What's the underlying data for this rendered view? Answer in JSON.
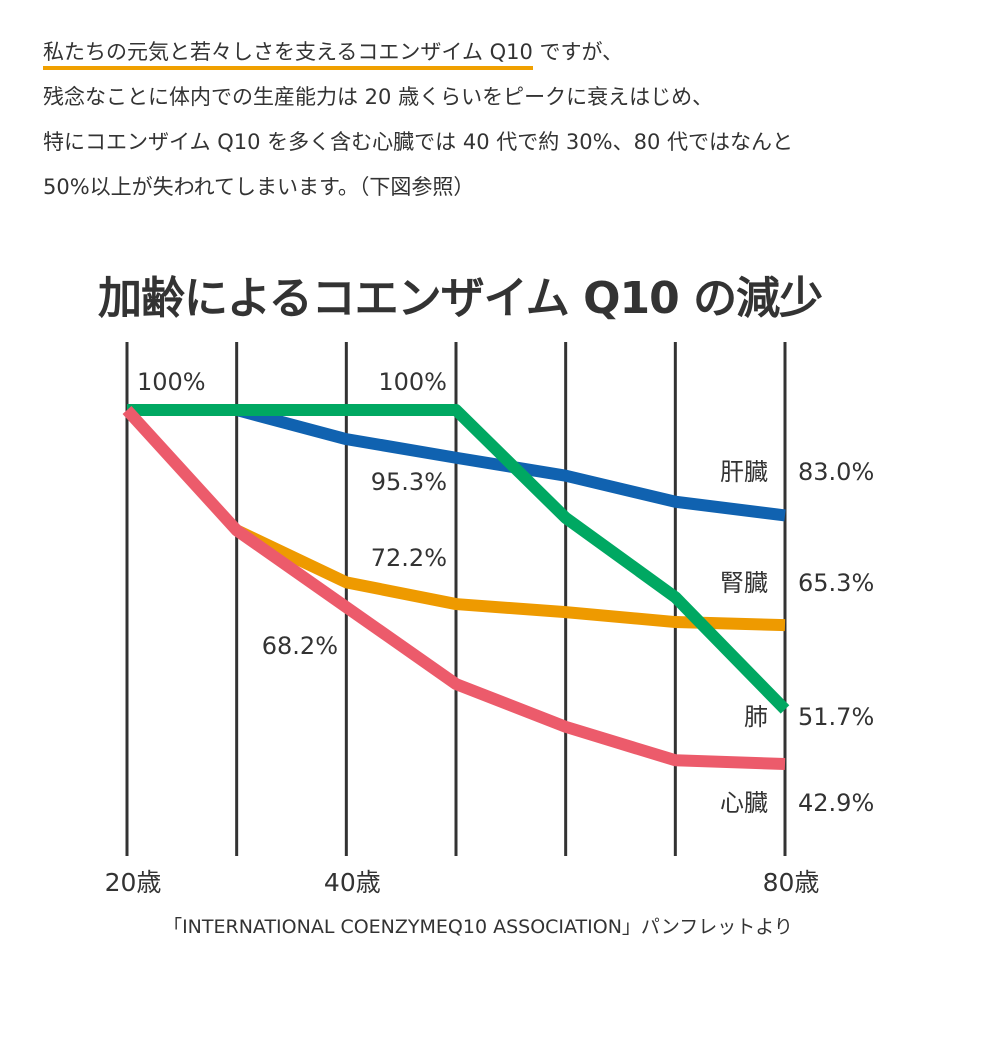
{
  "intro": {
    "line1_highlight": "私たちの元気と若々しさを支えるコエンザイム Q10",
    "line1_rest": " ですが、",
    "line2": "残念なことに体内での生産能力は 20 歳くらいをピークに衰えはじめ、",
    "line3": "特にコエンザイム Q10 を多く含む心臓では 40 代で約 30%、80 代ではなんと",
    "line4": "50%以上が失われてしまいます。（下図参照）",
    "highlight_color": "#f0a000"
  },
  "chart_data": {
    "type": "line",
    "title": "加齢によるコエンザイム Q10 の減少",
    "x": [
      20,
      30,
      40,
      50,
      60,
      70,
      80
    ],
    "x_unit": "歳",
    "x_tick_labels": [
      {
        "x": 20,
        "label": "20歳"
      },
      {
        "x": 40,
        "label": "40歳"
      },
      {
        "x": 80,
        "label": "80歳"
      }
    ],
    "xlim": [
      20,
      80
    ],
    "ylim": [
      40,
      100
    ],
    "y_unit": "%",
    "grid": "vertical lines at every 10 years",
    "series": [
      {
        "name": "肝臓",
        "color": "#1062b0",
        "values": [
          100,
          100,
          95.3,
          92.3,
          89.4,
          85.2,
          83.0
        ],
        "end_label": "83.0%"
      },
      {
        "name": "肺",
        "color": "#00a862",
        "values": [
          100,
          100,
          100,
          100,
          82.6,
          69.8,
          51.7
        ],
        "end_label": "51.7%"
      },
      {
        "name": "腎臓",
        "color": "#ee9a00",
        "values": [
          null,
          80.6,
          72.2,
          68.7,
          67.4,
          65.8,
          65.3
        ],
        "end_label": "65.3%"
      },
      {
        "name": "心臓",
        "color": "#ec5b6b",
        "values": [
          100,
          80.6,
          68.2,
          55.8,
          48.9,
          43.5,
          42.9
        ],
        "end_label": "42.9%"
      }
    ],
    "annotations": [
      {
        "x": 20,
        "text": "100%"
      },
      {
        "x": 40,
        "text": "100%"
      },
      {
        "x": 40,
        "text": "95.3%"
      },
      {
        "x": 40,
        "text": "72.2%"
      },
      {
        "x": 40,
        "text": "68.2%"
      }
    ],
    "source": "「INTERNATIONAL COENZYMEQ10 ASSOCIATION」パンフレットより"
  }
}
